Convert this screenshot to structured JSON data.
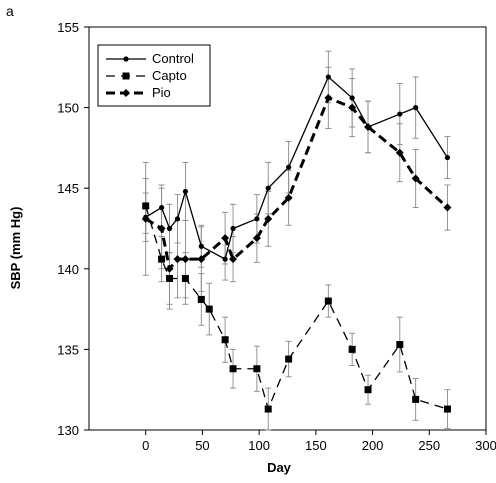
{
  "chart_data": {
    "type": "line",
    "panel_label": "a",
    "xlabel": "Day",
    "ylabel": "SBP (mm Hg)",
    "xlim": [
      -50,
      300
    ],
    "ylim": [
      130,
      155
    ],
    "x_ticks": [
      "0",
      "50",
      "100",
      "150",
      "200",
      "250",
      "300"
    ],
    "x_tick_values": [
      0,
      50,
      100,
      150,
      200,
      250,
      300
    ],
    "y_ticks": [
      "130",
      "135",
      "140",
      "145",
      "150",
      "155"
    ],
    "y_tick_values": [
      130,
      135,
      140,
      145,
      150,
      155
    ],
    "grid": false,
    "legend_position": "top-left",
    "series": [
      {
        "name": "Control",
        "line_style": "solid",
        "marker": "circle",
        "x": [
          0,
          14,
          21,
          28,
          35,
          49,
          70,
          77,
          98,
          108,
          126,
          161,
          182,
          196,
          224,
          238,
          266
        ],
        "y": [
          143.2,
          143.8,
          142.5,
          143.1,
          144.8,
          141.4,
          140.6,
          142.5,
          143.1,
          145.0,
          146.3,
          151.9,
          150.6,
          148.8,
          149.6,
          150.0,
          146.9
        ],
        "error": [
          1.5,
          1.4,
          1.5,
          1.5,
          1.8,
          1.3,
          1.3,
          1.5,
          1.5,
          1.6,
          1.6,
          1.6,
          1.8,
          1.6,
          1.9,
          1.9,
          1.3
        ]
      },
      {
        "name": "Capto",
        "line_style": "dashed",
        "marker": "square",
        "x": [
          0,
          14,
          21,
          35,
          49,
          56,
          70,
          77,
          98,
          108,
          126,
          161,
          182,
          196,
          224,
          238,
          266
        ],
        "y": [
          143.9,
          140.6,
          139.4,
          139.4,
          138.1,
          137.5,
          135.6,
          133.8,
          133.8,
          131.3,
          134.4,
          138.0,
          135.0,
          132.5,
          135.3,
          131.9,
          131.3
        ],
        "error": [
          1.7,
          1.4,
          1.6,
          1.6,
          1.6,
          1.6,
          1.4,
          1.2,
          1.4,
          1.3,
          1.1,
          1.0,
          1.0,
          0.9,
          1.7,
          1.3,
          1.2
        ]
      },
      {
        "name": "Pio",
        "line_style": "bold-dashed",
        "marker": "diamond",
        "x": [
          0,
          14,
          21,
          28,
          35,
          49,
          70,
          77,
          98,
          108,
          126,
          161,
          182,
          196,
          224,
          238,
          266
        ],
        "y": [
          143.1,
          142.5,
          140.0,
          140.6,
          140.6,
          140.6,
          141.9,
          140.6,
          141.9,
          143.1,
          144.4,
          150.6,
          150.0,
          148.8,
          147.2,
          145.6,
          143.8
        ],
        "error": [
          3.5,
          2.5,
          2.5,
          2.4,
          2.4,
          2.0,
          1.6,
          1.4,
          1.5,
          1.7,
          1.7,
          1.9,
          1.8,
          1.6,
          1.8,
          1.8,
          1.4
        ]
      }
    ]
  }
}
